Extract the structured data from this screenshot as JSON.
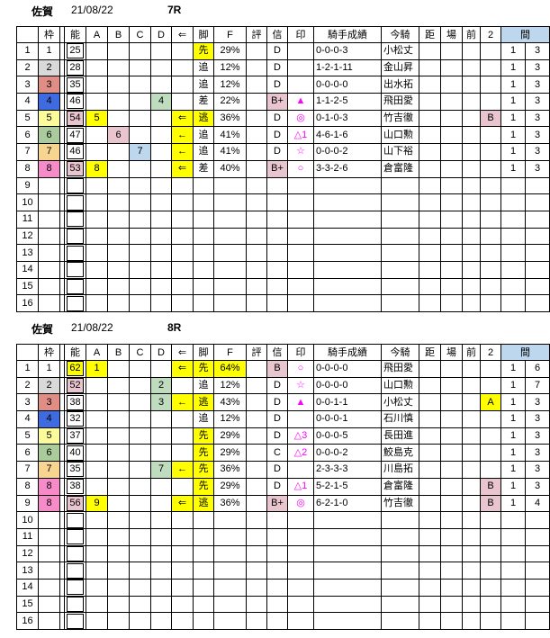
{
  "colors": {
    "yellow": "#FFFF00",
    "pink": "#E9C6CF",
    "green": "#BFDCBF",
    "blue": "#BDD7EE",
    "header_blue": "#BDD7EE",
    "mark_magenta": "#FF00FF",
    "grid": "#000000",
    "frame": {
      "1": "#FFFFFF",
      "2": "#D9D9D9",
      "3": "#E08D85",
      "4": "#3E6BE0",
      "5": "#FBFB9B",
      "6": "#AACB9B",
      "7": "#F7D48F",
      "8": "#F78BC9"
    }
  },
  "columns": [
    "",
    "枠",
    "",
    "能",
    "A",
    "B",
    "C",
    "D",
    "⇐",
    "脚",
    "F",
    "評",
    "信",
    "印",
    "騎手成績",
    "今騎",
    "距",
    "場",
    "前",
    "2"
  ],
  "span_header": "間",
  "tables": [
    {
      "title": {
        "track": "佐賀",
        "date": "21/08/22",
        "race": "7R"
      },
      "rows": [
        {
          "no": "1",
          "waku": "1",
          "nou": "25",
          "leg": "先",
          "leg_bg": "yellow",
          "f": "29%",
          "shin": "D",
          "seiseki": "0-0-0-3",
          "kishu": "小松丈",
          "m1": "1",
          "m2": "3"
        },
        {
          "no": "2",
          "waku": "2",
          "nou": "28",
          "leg": "追",
          "f": "12%",
          "shin": "D",
          "seiseki": "1-2-1-11",
          "kishu": "金山昇",
          "m1": "1",
          "m2": "3"
        },
        {
          "no": "3",
          "waku": "3",
          "nou": "35",
          "leg": "追",
          "f": "12%",
          "shin": "D",
          "seiseki": "0-0-0-0",
          "kishu": "出水拓",
          "m1": "1",
          "m2": "3"
        },
        {
          "no": "4",
          "waku": "4",
          "nou": "46",
          "d": "4",
          "d_bg": "green",
          "leg": "差",
          "f": "22%",
          "shin": "B+",
          "shin_bg": "pink",
          "mark": "▲",
          "seiseki": "1-1-2-5",
          "kishu": "飛田愛",
          "m1": "1",
          "m2": "3"
        },
        {
          "no": "5",
          "waku": "5",
          "nou": "54",
          "nou_bg": "pink",
          "a": "5",
          "a_bg": "yellow",
          "arrow": "⇐",
          "arrow_bg": "yellow",
          "leg": "逃",
          "leg_bg": "yellow",
          "f": "36%",
          "shin": "D",
          "mark": "◎",
          "seiseki": "0-1-0-3",
          "kishu": "竹吉徹",
          "two": "B",
          "two_bg": "pink",
          "m1": "1",
          "m2": "3"
        },
        {
          "no": "6",
          "waku": "6",
          "nou": "47",
          "b": "6",
          "b_bg": "pink",
          "arrow": "←",
          "arrow_bg": "yellow",
          "leg": "追",
          "f": "41%",
          "shin": "D",
          "mark": "△1",
          "seiseki": "4-6-1-6",
          "kishu": "山口勲",
          "m1": "1",
          "m2": "3"
        },
        {
          "no": "7",
          "waku": "7",
          "nou": "46",
          "c": "7",
          "c_bg": "blue",
          "arrow": "←",
          "arrow_bg": "yellow",
          "leg": "追",
          "f": "41%",
          "shin": "D",
          "mark": "☆",
          "seiseki": "0-0-0-2",
          "kishu": "山下裕",
          "m1": "1",
          "m2": "3"
        },
        {
          "no": "8",
          "waku": "8",
          "nou": "53",
          "nou_bg": "pink",
          "a": "8",
          "a_bg": "yellow",
          "arrow": "⇐",
          "arrow_bg": "yellow",
          "leg": "差",
          "f": "40%",
          "shin": "B+",
          "shin_bg": "pink",
          "mark": "○",
          "seiseki": "3-3-2-6",
          "kishu": "倉富隆",
          "m1": "1",
          "m2": "3"
        },
        {
          "no": "9"
        },
        {
          "no": "10"
        },
        {
          "no": "11"
        },
        {
          "no": "12"
        },
        {
          "no": "13"
        },
        {
          "no": "14"
        },
        {
          "no": "15"
        },
        {
          "no": "16"
        }
      ]
    },
    {
      "title": {
        "track": "佐賀",
        "date": "21/08/22",
        "race": "8R"
      },
      "rows": [
        {
          "no": "1",
          "waku": "1",
          "nou": "62",
          "nou_bg": "yellow",
          "a": "1",
          "a_bg": "yellow",
          "arrow": "⇐",
          "arrow_bg": "yellow",
          "leg": "先",
          "leg_bg": "yellow",
          "f": "64%",
          "f_bg": "yellow",
          "shin": "B",
          "shin_bg": "pink",
          "mark": "○",
          "seiseki": "0-0-0-0",
          "kishu": "飛田愛",
          "m1": "1",
          "m2": "6"
        },
        {
          "no": "2",
          "waku": "2",
          "nou": "52",
          "nou_bg": "pink",
          "d": "2",
          "d_bg": "green",
          "leg": "追",
          "f": "12%",
          "shin": "D",
          "mark": "☆",
          "seiseki": "0-0-0-0",
          "kishu": "山口勲",
          "m1": "1",
          "m2": "7"
        },
        {
          "no": "3",
          "waku": "3",
          "nou": "38",
          "d": "3",
          "d_bg": "green",
          "arrow": "←",
          "arrow_bg": "yellow",
          "leg": "逃",
          "leg_bg": "yellow",
          "f": "43%",
          "shin": "D",
          "mark": "▲",
          "seiseki": "0-0-1-1",
          "kishu": "小松丈",
          "two": "A",
          "two_bg": "yellow",
          "m1": "1",
          "m2": "3"
        },
        {
          "no": "4",
          "waku": "4",
          "nou": "32",
          "leg": "追",
          "f": "12%",
          "shin": "D",
          "seiseki": "0-0-0-1",
          "kishu": "石川慎",
          "m1": "1",
          "m2": "3"
        },
        {
          "no": "5",
          "waku": "5",
          "nou": "37",
          "leg": "先",
          "leg_bg": "yellow",
          "f": "29%",
          "shin": "D",
          "mark": "△3",
          "seiseki": "0-0-0-5",
          "kishu": "長田進",
          "m1": "1",
          "m2": "3"
        },
        {
          "no": "6",
          "waku": "6",
          "nou": "40",
          "leg": "先",
          "leg_bg": "yellow",
          "f": "29%",
          "shin": "C",
          "mark": "△2",
          "seiseki": "0-0-0-2",
          "kishu": "鮫島克",
          "m1": "1",
          "m2": "3"
        },
        {
          "no": "7",
          "waku": "7",
          "nou": "35",
          "d": "7",
          "d_bg": "green",
          "arrow": "←",
          "arrow_bg": "yellow",
          "leg": "先",
          "leg_bg": "yellow",
          "f": "36%",
          "shin": "D",
          "seiseki": "2-3-3-3",
          "kishu": "川島拓",
          "m1": "1",
          "m2": "3"
        },
        {
          "no": "8",
          "waku": "8",
          "nou": "38",
          "leg": "先",
          "leg_bg": "yellow",
          "f": "29%",
          "shin": "D",
          "mark": "△1",
          "seiseki": "5-2-1-5",
          "kishu": "倉富隆",
          "two": "B",
          "two_bg": "pink",
          "m1": "1",
          "m2": "3"
        },
        {
          "no": "9",
          "waku": "8",
          "nou": "56",
          "nou_bg": "pink",
          "a": "9",
          "a_bg": "yellow",
          "arrow": "⇐",
          "arrow_bg": "yellow",
          "leg": "逃",
          "leg_bg": "yellow",
          "f": "36%",
          "shin": "B+",
          "shin_bg": "pink",
          "mark": "◎",
          "seiseki": "6-2-1-0",
          "kishu": "竹吉徹",
          "two": "B",
          "two_bg": "pink",
          "m1": "1",
          "m2": "4"
        },
        {
          "no": "10"
        },
        {
          "no": "11"
        },
        {
          "no": "12"
        },
        {
          "no": "13"
        },
        {
          "no": "14"
        },
        {
          "no": "15"
        },
        {
          "no": "16"
        }
      ]
    }
  ]
}
